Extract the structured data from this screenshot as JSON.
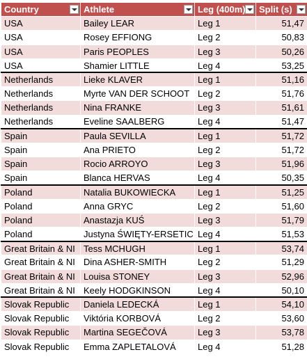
{
  "columns": [
    "Country",
    "Athlete",
    "Leg (400m)",
    "Split (s)"
  ],
  "rows": [
    [
      "USA",
      "Bailey LEAR",
      "Leg 1",
      "51,47"
    ],
    [
      "USA",
      "Rosey EFFIONG",
      "Leg 2",
      "50,83"
    ],
    [
      "USA",
      "Paris PEOPLES",
      "Leg 3",
      "50,26"
    ],
    [
      "USA",
      "Shamier LITTLE",
      "Leg 4",
      "53,25"
    ],
    [
      "Netherlands",
      "Lieke KLAVER",
      "Leg 1",
      "51,16"
    ],
    [
      "Netherlands",
      "Myrte VAN DER SCHOOT",
      "Leg 2",
      "51,76"
    ],
    [
      "Netherlands",
      "Nina FRANKE",
      "Leg 3",
      "51,61"
    ],
    [
      "Netherlands",
      "Eveline SAALBERG",
      "Leg 4",
      "51,47"
    ],
    [
      "Spain",
      "Paula SEVILLA",
      "Leg 1",
      "51,72"
    ],
    [
      "Spain",
      "Ana PRIETO",
      "Leg 2",
      "51,72"
    ],
    [
      "Spain",
      "Rocio ARROYO",
      "Leg 3",
      "51,96"
    ],
    [
      "Spain",
      "Blanca HERVAS",
      "Leg 4",
      "50,35"
    ],
    [
      "Poland",
      "Natalia BUKOWIECKA",
      "Leg 1",
      "51,25"
    ],
    [
      "Poland",
      "Anna GRYC",
      "Leg 2",
      "51,60"
    ],
    [
      "Poland",
      "Anastazja KUŚ",
      "Leg 3",
      "51,79"
    ],
    [
      "Poland",
      "Justyna ŚWIĘTY-ERSETIC",
      "Leg 4",
      "51,53"
    ],
    [
      "Great Britain & NI",
      "Tess MCHUGH",
      "Leg 1",
      "53,74"
    ],
    [
      "Great Britain & NI",
      "Dina ASHER-SMITH",
      "Leg 2",
      "51,29"
    ],
    [
      "Great Britain & NI",
      "Louisa STONEY",
      "Leg 3",
      "52,96"
    ],
    [
      "Great Britain & NI",
      "Keely HODGKINSON",
      "Leg 4",
      "50,10"
    ],
    [
      "Slovak Republic",
      "Daniela LEDECKÁ",
      "Leg 1",
      "54,10"
    ],
    [
      "Slovak Republic",
      "Viktória KORBOVÁ",
      "Leg 2",
      "53,60"
    ],
    [
      "Slovak Republic",
      "Martina SEGEČOVÁ",
      "Leg 3",
      "53,78"
    ],
    [
      "Slovak Republic",
      "Emma ZAPLETALOVÁ",
      "Leg 4",
      "51,28"
    ]
  ],
  "colors": {
    "header_bg": "#c0504d",
    "band_bg": "#f2dcdb"
  }
}
